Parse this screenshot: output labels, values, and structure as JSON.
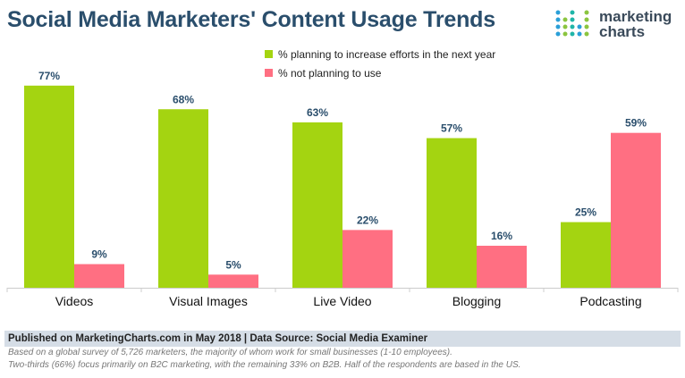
{
  "title": "Social Media Marketers' Content Usage Trends",
  "logo": {
    "line1": "marketing",
    "line2": "charts"
  },
  "footer": {
    "source": "Published on MarketingCharts.com in May 2018 | Data Source: Social Media Examiner",
    "note1": "Based on a global survey of 5,726 marketers, the majority of whom work for small businesses (1-10 employees).",
    "note2": "Two-thirds (66%) focus primarily on B2C marketing, with the remaining 33% on B2B. Half of the respondents are based in the US."
  },
  "chart_data": {
    "type": "bar",
    "categories": [
      "Videos",
      "Visual Images",
      "Live Video",
      "Blogging",
      "Podcasting"
    ],
    "series": [
      {
        "name": "% planning to increase efforts in the next year",
        "color": "#a4d411",
        "values": [
          77,
          68,
          63,
          57,
          25
        ],
        "labels": [
          "77%",
          "68%",
          "63%",
          "57%",
          "25%"
        ]
      },
      {
        "name": "% not planning to use",
        "color": "#ff6f82",
        "values": [
          9,
          5,
          22,
          16,
          59
        ],
        "labels": [
          "9%",
          "5%",
          "22%",
          "16%",
          "59%"
        ]
      }
    ],
    "ylim": [
      0,
      80
    ],
    "grid": false,
    "legend_position": "top-center"
  }
}
